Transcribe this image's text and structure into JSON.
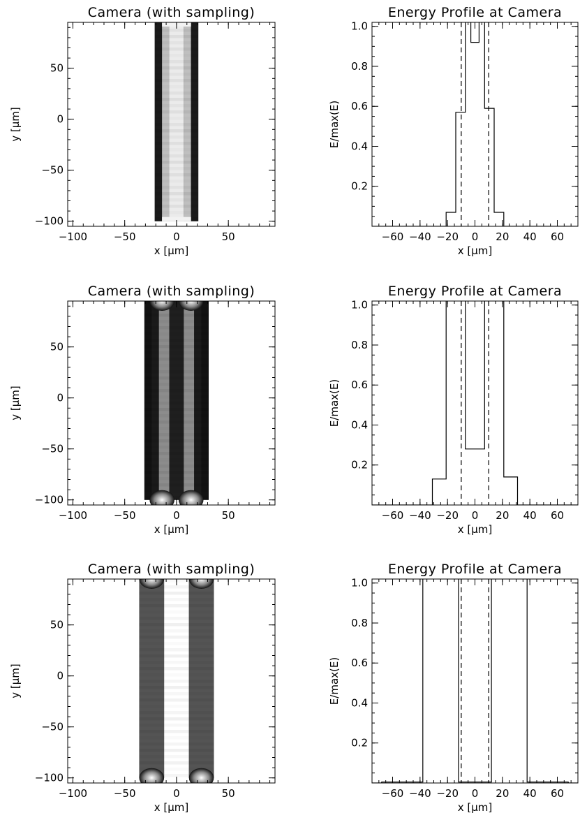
{
  "chart_data": [
    {
      "type": "heatmap",
      "title": "Camera (with sampling)",
      "xlabel": "x [μm]",
      "ylabel": "y [μm]",
      "xlim": [
        -105,
        95
      ],
      "ylim": [
        -105,
        95
      ],
      "xticks": [
        -100,
        -50,
        0,
        50
      ],
      "yticks": [
        -100,
        -50,
        0,
        50
      ],
      "fiber_edges": [
        -21,
        21
      ],
      "bands": [
        {
          "x0": -21,
          "x1": -14,
          "level": 0.1
        },
        {
          "x0": -14,
          "x1": -7,
          "level": 0.75
        },
        {
          "x0": -7,
          "x1": 7,
          "level": 0.92
        },
        {
          "x0": 7,
          "x1": 14,
          "level": 0.75
        },
        {
          "x0": 14,
          "x1": 21,
          "level": 0.1
        }
      ]
    },
    {
      "type": "line",
      "title": "Energy Profile at Camera",
      "xlabel": "x [μm]",
      "ylabel": "E/max(E)",
      "xlim": [
        -75,
        75
      ],
      "ylim": [
        0,
        1.02
      ],
      "xticks": [
        -60,
        -40,
        -20,
        0,
        20,
        40,
        60
      ],
      "yticks": [
        0.2,
        0.4,
        0.6,
        0.8,
        1.0
      ],
      "ytick_labels": [
        "0.2",
        "0.4",
        "0.6",
        "0.8",
        "1.0"
      ],
      "dashed_lines_x": [
        -10,
        10
      ],
      "x": [
        -75,
        -21,
        -21,
        -14,
        -14,
        -7,
        -7,
        -3,
        -3,
        3,
        3,
        7,
        7,
        14,
        14,
        21,
        21,
        75
      ],
      "y": [
        0,
        0,
        0.07,
        0.07,
        0.57,
        0.57,
        1.05,
        1.05,
        0.92,
        0.92,
        1.05,
        1.05,
        0.59,
        0.59,
        0.07,
        0.07,
        0,
        0
      ]
    },
    {
      "type": "heatmap",
      "title": "Camera (with sampling)",
      "xlabel": "x [μm]",
      "ylabel": "y [μm]",
      "xlim": [
        -105,
        95
      ],
      "ylim": [
        -105,
        95
      ],
      "xticks": [
        -100,
        -50,
        0,
        50
      ],
      "yticks": [
        -100,
        -50,
        0,
        50
      ],
      "fiber_edges": [
        -31,
        31
      ],
      "bands": [
        {
          "x0": -31,
          "x1": -24,
          "level": 0.07
        },
        {
          "x0": -24,
          "x1": -17,
          "level": 0.1
        },
        {
          "x0": -17,
          "x1": -7,
          "level": 0.55
        },
        {
          "x0": -7,
          "x1": 7,
          "level": 0.12
        },
        {
          "x0": 7,
          "x1": 17,
          "level": 0.55
        },
        {
          "x0": 17,
          "x1": 24,
          "level": 0.1
        },
        {
          "x0": 24,
          "x1": 31,
          "level": 0.07
        }
      ],
      "caps": [
        -14,
        14
      ]
    },
    {
      "type": "line",
      "title": "Energy Profile at Camera",
      "xlabel": "x [μm]",
      "ylabel": "E/max(E)",
      "xlim": [
        -75,
        75
      ],
      "ylim": [
        0,
        1.02
      ],
      "xticks": [
        -60,
        -40,
        -20,
        0,
        20,
        40,
        60
      ],
      "yticks": [
        0.2,
        0.4,
        0.6,
        0.8,
        1.0
      ],
      "ytick_labels": [
        "0.2",
        "0.4",
        "0.6",
        "0.8",
        "1.0"
      ],
      "dashed_lines_x": [
        -10,
        10
      ],
      "x": [
        -75,
        -31,
        -31,
        -21,
        -21,
        -7,
        -7,
        7,
        7,
        21,
        21,
        31,
        31,
        75
      ],
      "y": [
        0,
        0,
        0.13,
        0.13,
        1.05,
        1.05,
        0.28,
        0.28,
        1.05,
        1.05,
        0.14,
        0.14,
        0,
        0
      ]
    },
    {
      "type": "heatmap",
      "title": "Camera (with sampling)",
      "xlabel": "x [μm]",
      "ylabel": "y [μm]",
      "xlim": [
        -105,
        95
      ],
      "ylim": [
        -105,
        95
      ],
      "xticks": [
        -100,
        -50,
        0,
        50
      ],
      "yticks": [
        -100,
        -50,
        0,
        50
      ],
      "fiber_edges": [
        -36,
        36
      ],
      "bands": [
        {
          "x0": -36,
          "x1": -12,
          "level": 0.33
        },
        {
          "x0": 12,
          "x1": 36,
          "level": 0.33
        }
      ],
      "caps": [
        -24,
        24
      ],
      "white_gap": [
        -12,
        12
      ]
    },
    {
      "type": "line",
      "title": "Energy Profile at Camera",
      "xlabel": "x [μm]",
      "ylabel": "E/max(E)",
      "xlim": [
        -75,
        75
      ],
      "ylim": [
        0,
        1.02
      ],
      "xticks": [
        -60,
        -40,
        -20,
        0,
        20,
        40,
        60
      ],
      "yticks": [
        0.2,
        0.4,
        0.6,
        0.8,
        1.0
      ],
      "ytick_labels": [
        "0.2",
        "0.4",
        "0.6",
        "0.8",
        "1.0"
      ],
      "dashed_lines_x": [
        -10,
        10
      ],
      "x": [
        -75,
        -68,
        -68,
        -38,
        -38,
        -12,
        -12,
        12,
        12,
        38,
        38,
        68,
        68,
        75
      ],
      "y": [
        0,
        0,
        0.005,
        0.005,
        1.05,
        1.05,
        0.005,
        0.005,
        1.05,
        1.05,
        0.005,
        0.005,
        0,
        0
      ]
    }
  ]
}
